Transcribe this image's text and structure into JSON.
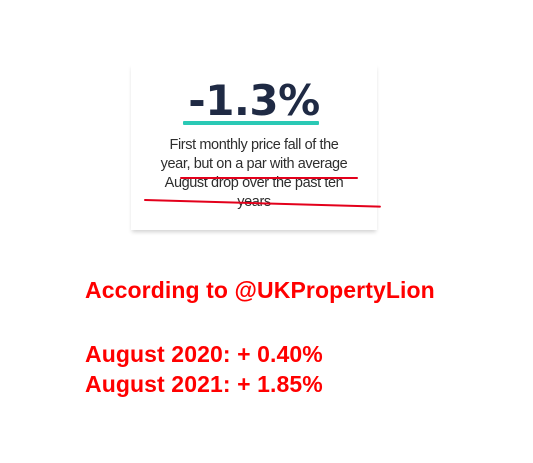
{
  "stat": {
    "headline": "-1.3%",
    "caption_lines": [
      "First monthly price fall of the",
      "year, but on a par with average",
      "August drop over the past ten",
      "years"
    ]
  },
  "annotations": {
    "source": "According to @UKPropertyLion",
    "august_2020": "August 2020: + 0.40%",
    "august_2021": "August 2021: + 1.85%"
  },
  "colors": {
    "headline": "#1f2a44",
    "headline_underline": "#2ac9b5",
    "handdrawn_underline": "#e3001b",
    "annotation_text": "#ff0000"
  }
}
